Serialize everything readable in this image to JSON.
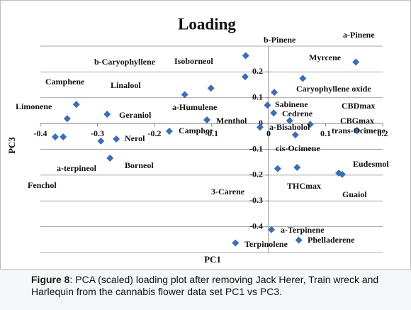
{
  "chart_data": {
    "type": "scatter",
    "title": "Loading",
    "xlabel": "PC1",
    "ylabel": "PC3",
    "color": "#3d6db5",
    "grid": true,
    "labels": [
      "a-Pinene",
      "b-Pinene",
      "Myrcene",
      "b-Caryophyllene",
      "Isoborneol",
      "Caryophyllene oxide",
      "Camphene",
      "Linalool",
      "Geraniol",
      "Limonene",
      "Sabinene",
      "CBDmax",
      "a-Humulene",
      "Cedrene",
      "Menthol",
      "CBGmax",
      "a-Bisabolol",
      "Camphor",
      "trans-Ocimene",
      "Fenchol",
      "a-terpineol",
      "Nerol",
      "Borneol",
      "cis-Ocimene",
      "3-Carene",
      "THCmax",
      "Eudesmol",
      "Guaiol",
      "a-Terpinene",
      "Phelladerene",
      "Terpinolene"
    ],
    "x": [
      0.153,
      -0.04,
      0.06,
      -0.041,
      -0.101,
      0.01,
      -0.337,
      -0.147,
      -0.283,
      -0.353,
      -0.002,
      0.009,
      -0.108,
      0.037,
      -0.015,
      0.073,
      0.047,
      -0.174,
      0.155,
      -0.374,
      -0.36,
      -0.267,
      -0.278,
      -0.294,
      0.016,
      0.05,
      0.123,
      0.129,
      0.005,
      0.053,
      -0.058
    ],
    "values": [
      0.238,
      0.263,
      0.175,
      0.181,
      0.137,
      0.121,
      0.074,
      0.112,
      0.036,
      0.019,
      0.071,
      0.041,
      0.014,
      0.011,
      -0.014,
      -0.003,
      -0.044,
      -0.03,
      -0.027,
      -0.052,
      -0.052,
      -0.06,
      -0.134,
      -0.068,
      -0.175,
      -0.17,
      -0.192,
      -0.197,
      -0.411,
      -0.452,
      -0.463
    ],
    "xlim": [
      -0.4,
      0.2
    ],
    "xticks": [
      -0.4,
      -0.3,
      -0.2,
      -0.1,
      0,
      0.1,
      0.2
    ],
    "ylim": [
      -0.5,
      0.3
    ],
    "yticks": [
      -0.4,
      -0.3,
      -0.2,
      -0.1,
      0,
      0.1,
      0.2
    ]
  },
  "caption": {
    "label": "Figure 8",
    "text": ": PCA (scaled) loading plot after removing Jack Herer, Train wreck and Harlequin from the cannabis flower data set PC1 vs PC3."
  }
}
